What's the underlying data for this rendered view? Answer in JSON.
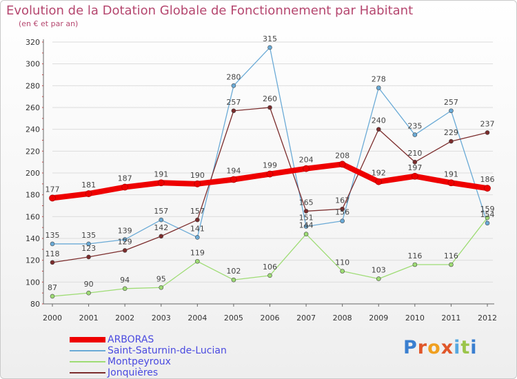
{
  "title": "Evolution de la Dotation Globale de Fonctionnement par Habitant",
  "subtitle": "(en € et par an)",
  "logo_text": "Proxiti",
  "chart_data": {
    "type": "line",
    "title": "Evolution de la Dotation Globale de Fonctionnement par Habitant",
    "subtitle": "(en € et par an)",
    "x": [
      2000,
      2001,
      2002,
      2003,
      2004,
      2005,
      2006,
      2007,
      2008,
      2009,
      2010,
      2011,
      2012
    ],
    "x_tick_labels": [
      "2000",
      "2001",
      "2002",
      "2003",
      "2004",
      "2005",
      "2006",
      "2007",
      "2008",
      "2009",
      "2010",
      "2011",
      "2012"
    ],
    "ylim": [
      80,
      320
    ],
    "y_ticks": [
      80,
      100,
      120,
      140,
      160,
      180,
      200,
      220,
      240,
      260,
      280,
      300,
      320
    ],
    "grid": "horizontal",
    "legend_position": "bottom-left",
    "series": [
      {
        "name": "ARBORAS",
        "color": "#ee0000",
        "values": [
          177,
          181,
          187,
          191,
          190,
          194,
          199,
          204,
          208,
          192,
          197,
          191,
          186
        ]
      },
      {
        "name": "Saint-Saturnin-de-Lucian",
        "color": "#6aaad6",
        "values": [
          135,
          135,
          139,
          157,
          141,
          280,
          315,
          151,
          156,
          278,
          235,
          257,
          154
        ]
      },
      {
        "name": "Montpeyroux",
        "color": "#9edc74",
        "values": [
          87,
          90,
          94,
          95,
          119,
          102,
          106,
          144,
          110,
          103,
          116,
          116,
          159
        ]
      },
      {
        "name": "Jonquières",
        "color": "#7b2c2c",
        "values": [
          118,
          123,
          129,
          142,
          157,
          257,
          260,
          165,
          167,
          240,
          210,
          229,
          237
        ]
      }
    ]
  }
}
